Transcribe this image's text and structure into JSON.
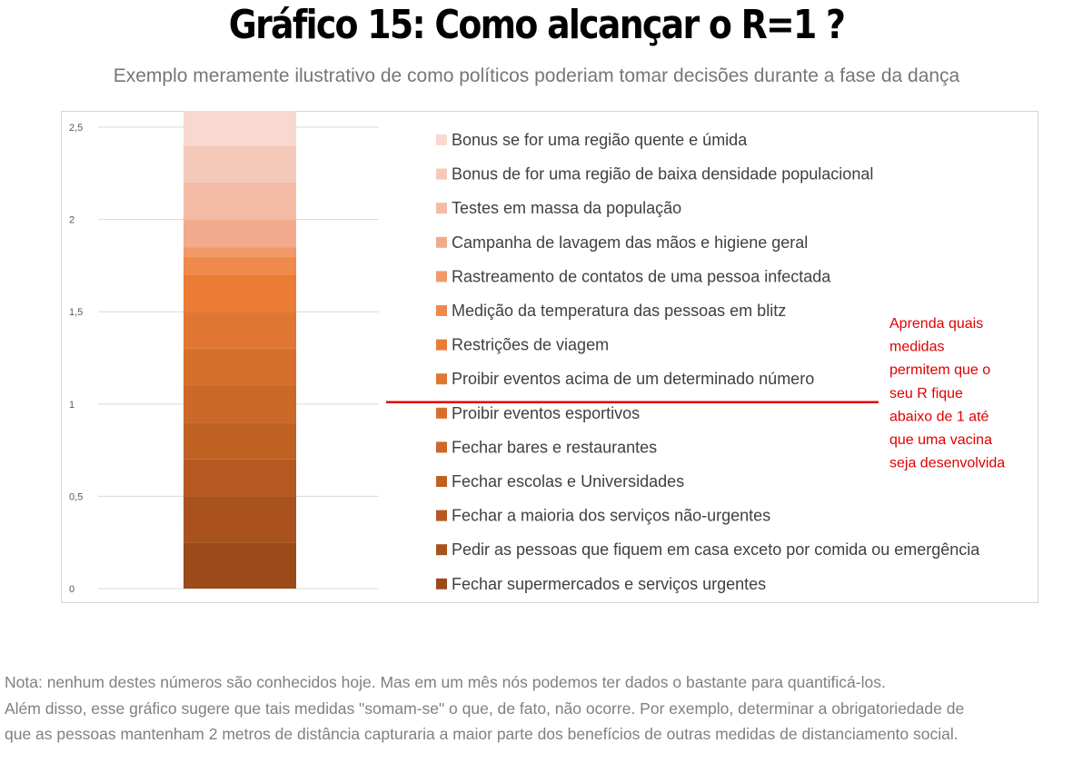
{
  "page": {
    "title": "Gráfico 15: Como alcançar o R=1 ?",
    "subtitle": "Exemplo meramente ilustrativo de como políticos poderiam tomar decisões durante a fase da dança",
    "note_lines": [
      "Nota: nenhum destes números são conhecidos hoje. Mas em um mês nós podemos ter dados o bastante para quantificá-los.",
      "Além disso, esse gráfico sugere que tais medidas \"somam-se\" o que, de fato, não ocorre. Por exemplo, determinar a obrigatoriedade de",
      "que as pessoas mantenham 2 metros de distância capturaria a maior parte dos benefícios de outras medidas de distanciamento social."
    ]
  },
  "chart_data": {
    "type": "bar",
    "stacked": true,
    "categories": [
      ""
    ],
    "ylim": [
      0,
      2.5
    ],
    "yticks": [
      0,
      0.5,
      1,
      1.5,
      2,
      2.5
    ],
    "ytick_labels": [
      "0",
      "0,5",
      "1",
      "1,5",
      "2",
      "2,5"
    ],
    "grid": true,
    "legend_position": "right",
    "series": [
      {
        "name": "Fechar supermercados e serviços urgentes",
        "values": [
          0.25
        ],
        "color": "#9c4a1a"
      },
      {
        "name": "Pedir as pessoas que fiquem em casa exceto por comida ou emergência",
        "values": [
          0.25
        ],
        "color": "#a9521d"
      },
      {
        "name": "Fechar a maioria dos serviços não-urgentes",
        "values": [
          0.2
        ],
        "color": "#b55920"
      },
      {
        "name": "Fechar escolas e Universidades",
        "values": [
          0.2
        ],
        "color": "#c06124"
      },
      {
        "name": "Fechar bares e restaurantes",
        "values": [
          0.2
        ],
        "color": "#cc6828"
      },
      {
        "name": "Proibir eventos esportivos",
        "values": [
          0.2
        ],
        "color": "#d76f2c"
      },
      {
        "name": "Proibir eventos acima de um determinado número",
        "values": [
          0.2
        ],
        "color": "#e07632"
      },
      {
        "name": "Restrições de viagem",
        "values": [
          0.2
        ],
        "color": "#ea7c35"
      },
      {
        "name": "Medição da temperatura das pessoas em blitz",
        "values": [
          0.1
        ],
        "color": "#ef8a4c"
      },
      {
        "name": "Rastreamento de contatos de uma pessoa infectada",
        "values": [
          0.05
        ],
        "color": "#f09a6a"
      },
      {
        "name": "Campanha de lavagem das mãos e higiene geral",
        "values": [
          0.15
        ],
        "color": "#f1ab8c"
      },
      {
        "name": "Testes em massa da população",
        "values": [
          0.2
        ],
        "color": "#f3bba5"
      },
      {
        "name": "Bonus de for uma região de baixa densidade populacional",
        "values": [
          0.2
        ],
        "color": "#f5c9ba"
      },
      {
        "name": "Bonus se for uma região quente e úmida",
        "values": [
          0.2
        ],
        "color": "#f8d9cf"
      }
    ],
    "reference_line": {
      "y": 1,
      "color": "#e00000"
    },
    "annotation_lines": [
      "Aprenda quais",
      "medidas",
      "permitem que o",
      "seu R fique",
      "abaixo de 1 até",
      "que uma vacina",
      "seja desenvolvida"
    ],
    "annotation_color": "#e00000"
  }
}
